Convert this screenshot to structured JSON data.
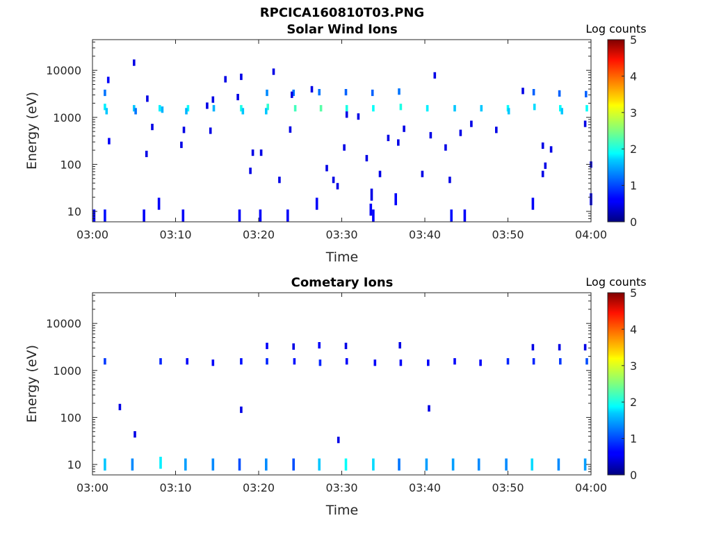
{
  "figure": {
    "filename_title": "RPCICA160810T03.PNG"
  },
  "chart_data": [
    {
      "type": "heatmap",
      "title": "Solar Wind Ions",
      "xlabel": "Time",
      "ylabel": "Energy (eV)",
      "x_scale": "time",
      "y_scale": "log",
      "xlim": [
        "03:00",
        "04:00"
      ],
      "ylim": [
        6,
        45000
      ],
      "x_ticks": [
        "03:00",
        "03:10",
        "03:20",
        "03:30",
        "03:40",
        "03:50",
        "04:00"
      ],
      "y_ticks": [
        {
          "value": 10,
          "label": "10"
        },
        {
          "value": 100,
          "label": "100"
        },
        {
          "value": 1000,
          "label": "1000"
        },
        {
          "value": 10000,
          "label": "10000"
        }
      ],
      "colorbar": {
        "label": "Log counts",
        "min": 0,
        "max": 5,
        "ticks": [
          "0",
          "1",
          "2",
          "3",
          "4",
          "5"
        ],
        "colormap": "jet"
      },
      "cells_format": [
        "minute",
        "energy_eV",
        "log_counts"
      ],
      "cells": [
        [
          1.5,
          1600,
          1.8
        ],
        [
          1.7,
          1300,
          1.6
        ],
        [
          1.5,
          3200,
          1.2
        ],
        [
          1.9,
          6000,
          0.6
        ],
        [
          2.0,
          300,
          0.6
        ],
        [
          5.0,
          1500,
          1.6
        ],
        [
          5.2,
          1300,
          1.2
        ],
        [
          8.1,
          1500,
          1.8
        ],
        [
          8.4,
          1400,
          1.5
        ],
        [
          11.5,
          1500,
          1.9
        ],
        [
          11.3,
          1300,
          1.5
        ],
        [
          14.6,
          1500,
          1.5
        ],
        [
          17.9,
          1500,
          2.0
        ],
        [
          18.1,
          1300,
          1.6
        ],
        [
          21.1,
          1600,
          2.1
        ],
        [
          20.9,
          1300,
          1.6
        ],
        [
          21.0,
          3200,
          1.3
        ],
        [
          24.4,
          1500,
          2.2
        ],
        [
          24.2,
          3200,
          1.2
        ],
        [
          27.5,
          1500,
          2.3
        ],
        [
          27.3,
          3300,
          1.2
        ],
        [
          30.6,
          1500,
          2.0
        ],
        [
          30.5,
          3300,
          1.1
        ],
        [
          33.8,
          1500,
          1.9
        ],
        [
          33.7,
          3200,
          1.1
        ],
        [
          37.1,
          1600,
          2.0
        ],
        [
          36.9,
          3400,
          1.2
        ],
        [
          40.3,
          1500,
          1.8
        ],
        [
          43.6,
          1500,
          1.6
        ],
        [
          46.8,
          1500,
          1.6
        ],
        [
          50.0,
          1500,
          1.9
        ],
        [
          50.1,
          1300,
          1.6
        ],
        [
          53.2,
          1600,
          1.7
        ],
        [
          53.1,
          3300,
          1.1
        ],
        [
          56.3,
          1500,
          1.9
        ],
        [
          56.5,
          1300,
          1.6
        ],
        [
          56.2,
          3100,
          1.1
        ],
        [
          59.5,
          1500,
          1.9
        ],
        [
          59.4,
          3000,
          1.1
        ],
        [
          5.0,
          14000,
          0.5
        ],
        [
          6.5,
          160,
          0.5
        ],
        [
          6.6,
          2400,
          0.5
        ],
        [
          7.2,
          600,
          0.5
        ],
        [
          10.7,
          250,
          0.5
        ],
        [
          11.0,
          520,
          0.5
        ],
        [
          13.8,
          1700,
          0.5
        ],
        [
          14.2,
          500,
          0.5
        ],
        [
          14.5,
          2300,
          0.5
        ],
        [
          16.0,
          6200,
          0.5
        ],
        [
          17.5,
          2600,
          0.5
        ],
        [
          17.9,
          7000,
          0.5
        ],
        [
          19.0,
          70,
          0.5
        ],
        [
          19.3,
          170,
          0.5
        ],
        [
          20.3,
          170,
          0.5
        ],
        [
          21.8,
          9000,
          0.5
        ],
        [
          22.5,
          45,
          0.5
        ],
        [
          23.8,
          530,
          0.5
        ],
        [
          24.0,
          2900,
          0.5
        ],
        [
          26.4,
          3800,
          0.5
        ],
        [
          28.2,
          80,
          0.5
        ],
        [
          29.0,
          45,
          0.5
        ],
        [
          29.5,
          33,
          0.5
        ],
        [
          30.3,
          220,
          0.5
        ],
        [
          30.6,
          1100,
          0.5
        ],
        [
          32.0,
          1000,
          0.5
        ],
        [
          33.0,
          130,
          0.5
        ],
        [
          33.6,
          25,
          0.5
        ],
        [
          34.6,
          60,
          0.5
        ],
        [
          35.6,
          350,
          0.5
        ],
        [
          36.8,
          280,
          0.5
        ],
        [
          37.5,
          550,
          0.5
        ],
        [
          39.7,
          60,
          0.5
        ],
        [
          40.7,
          400,
          0.5
        ],
        [
          41.2,
          7500,
          0.5
        ],
        [
          42.5,
          220,
          0.5
        ],
        [
          43.0,
          45,
          0.5
        ],
        [
          44.3,
          450,
          0.5
        ],
        [
          45.6,
          700,
          0.5
        ],
        [
          48.6,
          520,
          0.5
        ],
        [
          51.8,
          3500,
          0.5
        ],
        [
          54.2,
          240,
          0.5
        ],
        [
          54.2,
          60,
          0.5
        ],
        [
          54.5,
          90,
          0.5
        ],
        [
          55.2,
          200,
          0.5
        ],
        [
          59.3,
          700,
          0.5
        ],
        [
          60.0,
          95,
          0.5
        ],
        [
          0.2,
          9,
          0.6
        ],
        [
          1.5,
          9,
          0.7
        ],
        [
          6.2,
          9,
          0.6
        ],
        [
          8.0,
          16,
          0.6
        ],
        [
          10.9,
          9,
          0.6
        ],
        [
          17.7,
          9,
          0.6
        ],
        [
          20.2,
          9,
          0.6
        ],
        [
          23.5,
          9,
          0.6
        ],
        [
          27.0,
          16,
          0.6
        ],
        [
          33.5,
          12,
          0.6
        ],
        [
          33.8,
          9,
          0.6
        ],
        [
          36.5,
          20,
          0.6
        ],
        [
          43.2,
          9,
          0.7
        ],
        [
          44.8,
          9,
          0.6
        ],
        [
          53.0,
          16,
          0.6
        ],
        [
          60.0,
          20,
          0.6
        ]
      ]
    },
    {
      "type": "heatmap",
      "title": "Cometary Ions",
      "xlabel": "Time",
      "ylabel": "Energy (eV)",
      "x_scale": "time",
      "y_scale": "log",
      "xlim": [
        "03:00",
        "04:00"
      ],
      "ylim": [
        6,
        45000
      ],
      "x_ticks": [
        "03:00",
        "03:10",
        "03:20",
        "03:30",
        "03:40",
        "03:50",
        "04:00"
      ],
      "y_ticks": [
        {
          "value": 10,
          "label": "10"
        },
        {
          "value": 100,
          "label": "100"
        },
        {
          "value": 1000,
          "label": "1000"
        },
        {
          "value": 10000,
          "label": "10000"
        }
      ],
      "colorbar": {
        "label": "Log counts",
        "min": 0,
        "max": 5,
        "ticks": [
          "0",
          "1",
          "2",
          "3",
          "4",
          "5"
        ],
        "colormap": "jet"
      },
      "cells_format": [
        "minute",
        "energy_eV",
        "log_counts"
      ],
      "cells": [
        [
          1.5,
          1500,
          0.9
        ],
        [
          8.2,
          1500,
          0.8
        ],
        [
          11.4,
          1500,
          0.6
        ],
        [
          14.5,
          1400,
          0.6
        ],
        [
          17.9,
          1500,
          0.7
        ],
        [
          21.0,
          1500,
          0.8
        ],
        [
          21.0,
          3200,
          0.6
        ],
        [
          24.3,
          1500,
          0.7
        ],
        [
          24.2,
          3100,
          0.5
        ],
        [
          27.4,
          1400,
          0.8
        ],
        [
          27.3,
          3300,
          0.6
        ],
        [
          30.6,
          1500,
          0.6
        ],
        [
          30.5,
          3200,
          0.5
        ],
        [
          34.0,
          1400,
          0.6
        ],
        [
          37.1,
          1400,
          0.6
        ],
        [
          37.0,
          3300,
          0.5
        ],
        [
          40.4,
          1400,
          0.6
        ],
        [
          43.6,
          1500,
          0.6
        ],
        [
          46.7,
          1400,
          0.6
        ],
        [
          50.0,
          1500,
          0.8
        ],
        [
          53.1,
          1500,
          0.8
        ],
        [
          53.0,
          3000,
          0.5
        ],
        [
          56.3,
          1500,
          0.9
        ],
        [
          56.2,
          3000,
          0.5
        ],
        [
          59.5,
          1500,
          1.0
        ],
        [
          59.3,
          3000,
          0.5
        ],
        [
          3.3,
          160,
          0.5
        ],
        [
          5.1,
          42,
          0.5
        ],
        [
          17.9,
          140,
          0.5
        ],
        [
          29.6,
          32,
          0.5
        ],
        [
          40.5,
          150,
          0.5
        ],
        [
          1.5,
          11,
          1.6
        ],
        [
          4.8,
          11,
          1.3
        ],
        [
          8.2,
          12,
          1.8
        ],
        [
          11.2,
          11,
          1.4
        ],
        [
          14.5,
          11,
          1.3
        ],
        [
          17.7,
          11,
          1.0
        ],
        [
          20.9,
          11,
          1.3
        ],
        [
          24.2,
          11,
          1.0
        ],
        [
          27.3,
          11,
          1.6
        ],
        [
          30.5,
          11,
          1.9
        ],
        [
          33.8,
          11,
          1.7
        ],
        [
          36.9,
          11,
          1.2
        ],
        [
          40.2,
          11,
          1.4
        ],
        [
          43.4,
          11,
          1.4
        ],
        [
          46.5,
          11,
          1.3
        ],
        [
          49.8,
          11,
          1.3
        ],
        [
          52.9,
          11,
          1.7
        ],
        [
          56.1,
          11,
          1.3
        ],
        [
          59.3,
          11,
          1.4
        ]
      ]
    }
  ]
}
